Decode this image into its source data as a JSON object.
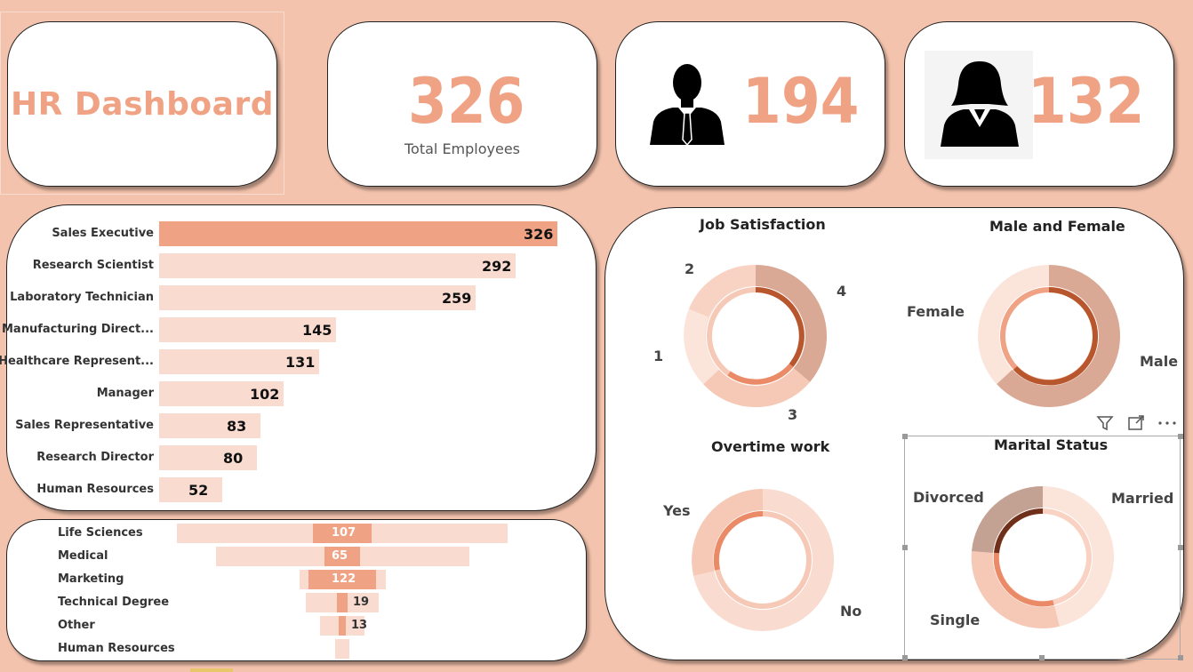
{
  "header": {
    "title": "HR Dashboard",
    "total_employees": "326",
    "total_label": "Total Employees",
    "male_count": "194",
    "female_count": "132"
  },
  "job_roles": [
    {
      "label": "Sales Executive",
      "value": 326
    },
    {
      "label": "Research Scientist",
      "value": 292
    },
    {
      "label": "Laboratory Technician",
      "value": 259
    },
    {
      "label": "Manufacturing Direct...",
      "value": 145
    },
    {
      "label": "Healthcare Represent...",
      "value": 131
    },
    {
      "label": "Manager",
      "value": 102
    },
    {
      "label": "Sales Representative",
      "value": 83
    },
    {
      "label": "Research Director",
      "value": 80
    },
    {
      "label": "Human Resources",
      "value": 52
    }
  ],
  "education_fields": [
    {
      "label": "Life Sciences",
      "value": "107"
    },
    {
      "label": "Medical",
      "value": "65"
    },
    {
      "label": "Marketing",
      "value": "122"
    },
    {
      "label": "Technical Degree",
      "value": "19"
    },
    {
      "label": "Other",
      "value": "13"
    },
    {
      "label": "Human Resources",
      "value": ""
    }
  ],
  "charts": {
    "job_satisfaction": {
      "title": "Job Satisfaction",
      "labels": [
        "2",
        "4",
        "1",
        "3"
      ]
    },
    "gender": {
      "title": "Male and Female",
      "labels": [
        "Female",
        "Male"
      ]
    },
    "overtime": {
      "title": "Overtime work",
      "labels": [
        "Yes",
        "No"
      ]
    },
    "marital": {
      "title": "Marital Status",
      "labels": [
        "Divorced",
        "Married",
        "Single"
      ]
    }
  },
  "colors": {
    "background": "#f4c3ad",
    "accent": "#f0a384",
    "bar_light": "#f9dbd0"
  },
  "icons": [
    "male-person-icon",
    "female-person-icon",
    "filter-icon",
    "focus-mode-icon",
    "more-options-icon"
  ]
}
